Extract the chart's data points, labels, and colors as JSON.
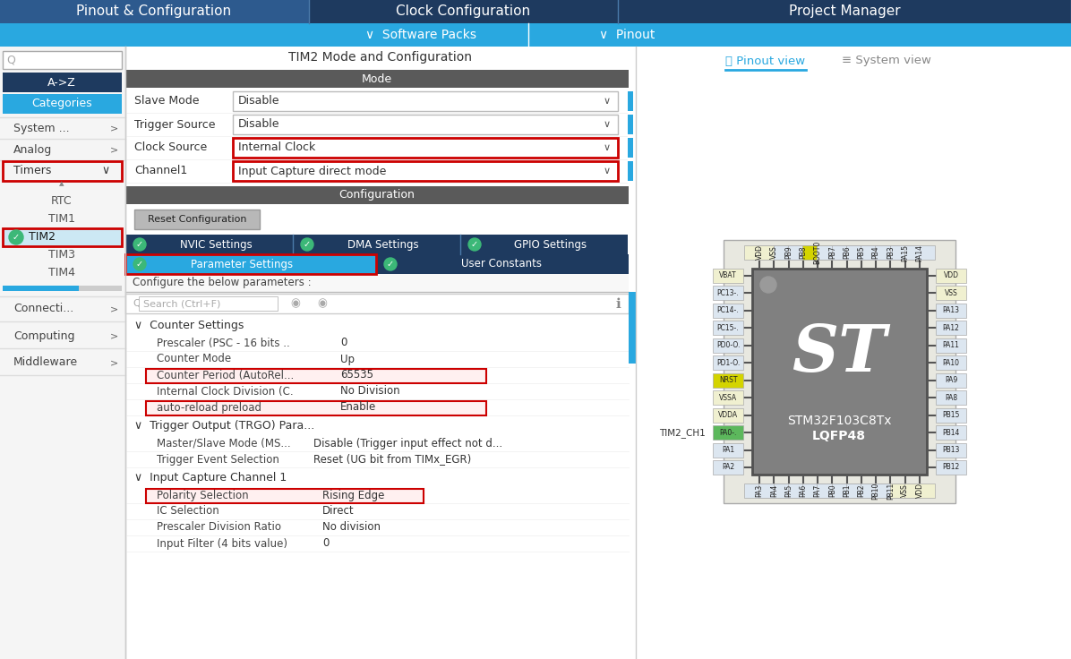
{
  "header_dark_blue": "#1e3a5f",
  "header_mid_blue": "#2a5080",
  "header_light_blue": "#29a8e0",
  "white": "#ffffff",
  "bg_white": "#ffffff",
  "bg_gray": "#f5f5f5",
  "mode_bar": "#5a5a5a",
  "text_dark": "#333333",
  "text_medium": "#555555",
  "text_light": "#aaaaaa",
  "border_light": "#cccccc",
  "border_medium": "#aaaaaa",
  "red_highlight": "#cc0000",
  "green_check": "#3cb878",
  "tab_active_bg": "#29a8e0",
  "tab_dark_bg": "#1e3a5f",
  "dropdown_bg": "#ffffff",
  "pin_default": "#dce6f0",
  "pin_yellow": "#c8c800",
  "pin_green": "#5cb85c",
  "pin_light_yellow": "#f5f5c8",
  "chip_body": "#808080",
  "chip_darker": "#6a6a6a",
  "st_logo_white": "#ffffff",
  "scrollbar_blue": "#29a8e0",
  "scrollbar_gray": "#cccccc",
  "separator_line": "#e0e0e0",
  "header_tabs": [
    "Pinout & Configuration",
    "Clock Configuration",
    "Project Manager"
  ],
  "mode_fields": [
    {
      "label": "Slave Mode",
      "value": "Disable",
      "highlighted": false
    },
    {
      "label": "Trigger Source",
      "value": "Disable",
      "highlighted": false
    },
    {
      "label": "Clock Source",
      "value": "Internal Clock",
      "highlighted": true
    },
    {
      "label": "Channel1",
      "value": "Input Capture direct mode",
      "highlighted": true
    }
  ],
  "counter_settings": [
    {
      "indent": 2,
      "label": "Prescaler (PSC - 16 bits ..",
      "value": "0",
      "highlighted": false
    },
    {
      "indent": 2,
      "label": "Counter Mode",
      "value": "Up",
      "highlighted": false
    },
    {
      "indent": 2,
      "label": "Counter Period (AutoRel...",
      "value": "65535",
      "highlighted": true
    },
    {
      "indent": 2,
      "label": "Internal Clock Division (C.",
      "value": "No Division",
      "highlighted": false
    },
    {
      "indent": 2,
      "label": "auto-reload preload",
      "value": "Enable",
      "highlighted": true
    }
  ],
  "trgo_settings": [
    {
      "indent": 2,
      "label": "Master/Slave Mode (MS...",
      "value": "Disable (Trigger input effect not d...",
      "highlighted": false
    },
    {
      "indent": 2,
      "label": "Trigger Event Selection",
      "value": "Reset (UG bit from TIMx_EGR)",
      "highlighted": false
    }
  ],
  "ic_settings": [
    {
      "indent": 2,
      "label": "Polarity Selection",
      "value": "Rising Edge",
      "highlighted": true
    },
    {
      "indent": 2,
      "label": "IC Selection",
      "value": "Direct",
      "highlighted": false
    },
    {
      "indent": 2,
      "label": "Prescaler Division Ratio",
      "value": "No division",
      "highlighted": false
    },
    {
      "indent": 2,
      "label": "Input Filter (4 bits value)",
      "value": "0",
      "highlighted": false
    }
  ],
  "chip_top_pins": [
    "VDD",
    "VSS",
    "PB9",
    "PB8",
    "BOOT0",
    "PB7",
    "PB6",
    "PB5",
    "PB4",
    "PB3",
    "PA15",
    "PA14"
  ],
  "chip_bottom_pins": [
    "PA3",
    "PA4",
    "PA5",
    "PA6",
    "PA7",
    "PB0",
    "PB1",
    "PB2",
    "PB10",
    "PB11",
    "VSS",
    "VDD"
  ],
  "chip_left_pins": [
    "VBAT",
    "PC13-.",
    "PC14-.",
    "PC15-.",
    "PD0-O.",
    "PD1-O.",
    "NRST",
    "VSSA",
    "VDDA",
    "PA0-.",
    "PA1",
    "PA2"
  ],
  "chip_right_pins": [
    "VDD",
    "VSS",
    "PA13",
    "PA12",
    "PA11",
    "PA10",
    "PA9",
    "PA8",
    "PB15",
    "PB14",
    "PB13",
    "PB12"
  ],
  "chip_name": "STM32F103C8Tx",
  "chip_package": "LQFP48",
  "tim2_ch1_label": "TIM2_CH1"
}
